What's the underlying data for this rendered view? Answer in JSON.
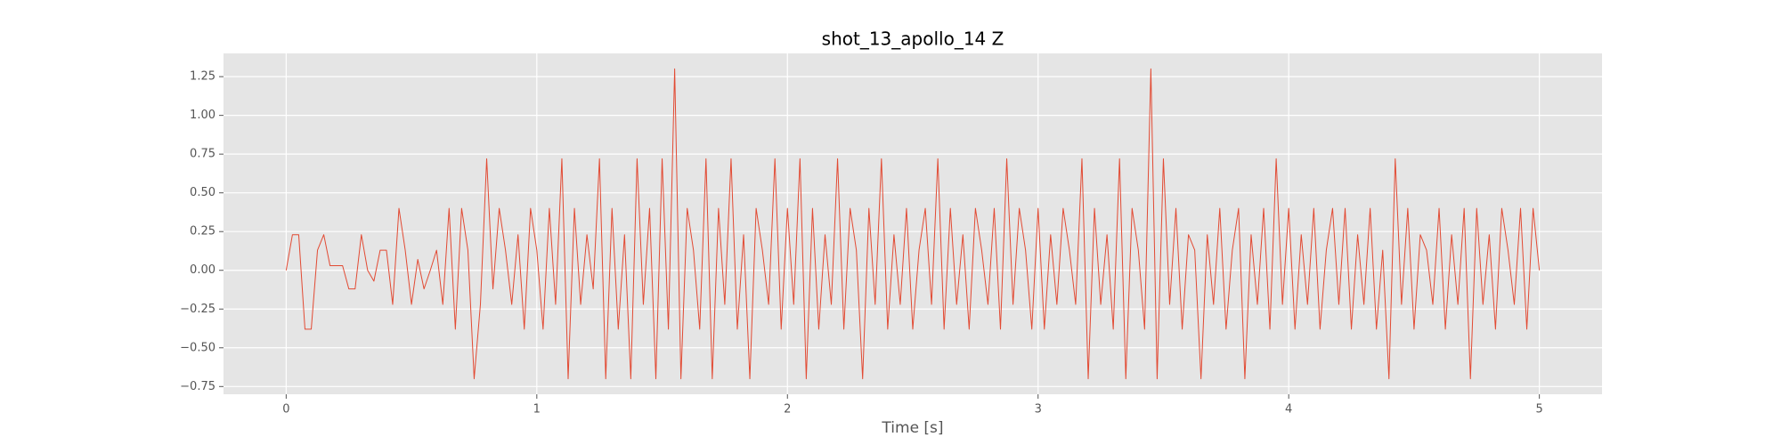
{
  "chart_data": {
    "type": "line",
    "title": "shot_13_apollo_14 Z",
    "x_label": "Time [s]",
    "color": "#e24a33",
    "grid": true,
    "xlim": [
      -0.25,
      5.25
    ],
    "ylim": [
      -0.8,
      1.4
    ],
    "xticks": [
      0,
      1,
      2,
      3,
      4,
      5
    ],
    "yticks": [
      {
        "value": -0.75,
        "label": "−0.75"
      },
      {
        "value": -0.5,
        "label": "−0.50"
      },
      {
        "value": -0.25,
        "label": "−0.25"
      },
      {
        "value": 0,
        "label": "0.00"
      },
      {
        "value": 0.25,
        "label": "0.25"
      },
      {
        "value": 0.5,
        "label": "0.50"
      },
      {
        "value": 0.75,
        "label": "0.75"
      },
      {
        "value": 1.0,
        "label": "1.00"
      },
      {
        "value": 1.25,
        "label": "1.25"
      }
    ],
    "x": [
      0,
      0.025,
      0.05,
      0.075,
      0.1,
      0.125,
      0.15,
      0.175,
      0.2,
      0.225,
      0.25,
      0.275,
      0.3,
      0.325,
      0.35,
      0.375,
      0.4,
      0.425,
      0.45,
      0.475,
      0.5,
      0.525,
      0.55,
      0.575,
      0.6,
      0.625,
      0.65,
      0.675,
      0.7,
      0.725,
      0.75,
      0.775,
      0.8,
      0.825,
      0.85,
      0.875,
      0.9,
      0.925,
      0.95,
      0.975,
      1,
      1.025,
      1.05,
      1.075,
      1.1,
      1.125,
      1.15,
      1.175,
      1.2,
      1.225,
      1.25,
      1.275,
      1.3,
      1.325,
      1.35,
      1.375,
      1.4,
      1.425,
      1.45,
      1.475,
      1.5,
      1.525,
      1.55,
      1.575,
      1.6,
      1.625,
      1.65,
      1.675,
      1.7,
      1.725,
      1.75,
      1.775,
      1.8,
      1.825,
      1.85,
      1.875,
      1.9,
      1.925,
      1.95,
      1.975,
      2,
      2.025,
      2.05,
      2.075,
      2.1,
      2.125,
      2.15,
      2.175,
      2.2,
      2.225,
      2.25,
      2.275,
      2.3,
      2.325,
      2.35,
      2.375,
      2.4,
      2.425,
      2.45,
      2.475,
      2.5,
      2.525,
      2.55,
      2.575,
      2.6,
      2.625,
      2.65,
      2.675,
      2.7,
      2.725,
      2.75,
      2.775,
      2.8,
      2.825,
      2.85,
      2.875,
      2.9,
      2.925,
      2.95,
      2.975,
      3,
      3.025,
      3.05,
      3.075,
      3.1,
      3.125,
      3.15,
      3.175,
      3.2,
      3.225,
      3.25,
      3.275,
      3.3,
      3.325,
      3.35,
      3.375,
      3.4,
      3.425,
      3.45,
      3.475,
      3.5,
      3.525,
      3.55,
      3.575,
      3.6,
      3.625,
      3.65,
      3.675,
      3.7,
      3.725,
      3.75,
      3.775,
      3.8,
      3.825,
      3.85,
      3.875,
      3.9,
      3.925,
      3.95,
      3.975,
      4,
      4.025,
      4.05,
      4.075,
      4.1,
      4.125,
      4.15,
      4.175,
      4.2,
      4.225,
      4.25,
      4.275,
      4.3,
      4.325,
      4.35,
      4.375,
      4.4,
      4.425,
      4.45,
      4.475,
      4.5,
      4.525,
      4.55,
      4.575,
      4.6,
      4.625,
      4.65,
      4.675,
      4.7,
      4.725,
      4.75,
      4.775,
      4.8,
      4.825,
      4.85,
      4.875,
      4.9,
      4.925,
      4.95,
      4.975,
      5
    ],
    "values": [
      0,
      0.23,
      0.23,
      -0.38,
      -0.38,
      0.13,
      0.23,
      0.03,
      0.03,
      0.03,
      -0.12,
      -0.12,
      0.23,
      0,
      -0.07,
      0.13,
      0.13,
      -0.22,
      0.4,
      0.13,
      -0.22,
      0.07,
      -0.12,
      0,
      0.13,
      -0.22,
      0.4,
      -0.38,
      0.4,
      0.13,
      -0.7,
      -0.22,
      0.72,
      -0.12,
      0.4,
      0.13,
      -0.22,
      0.23,
      -0.38,
      0.4,
      0.13,
      -0.38,
      0.4,
      -0.22,
      0.72,
      -0.7,
      0.4,
      -0.22,
      0.23,
      -0.12,
      0.72,
      -0.7,
      0.4,
      -0.38,
      0.23,
      -0.7,
      0.72,
      -0.22,
      0.4,
      -0.7,
      0.72,
      -0.38,
      1.3,
      -0.7,
      0.4,
      0.13,
      -0.38,
      0.72,
      -0.7,
      0.4,
      -0.22,
      0.72,
      -0.38,
      0.23,
      -0.7,
      0.4,
      0.13,
      -0.22,
      0.72,
      -0.38,
      0.4,
      -0.22,
      0.72,
      -0.7,
      0.4,
      -0.38,
      0.23,
      -0.22,
      0.72,
      -0.38,
      0.4,
      0.13,
      -0.7,
      0.4,
      -0.22,
      0.72,
      -0.38,
      0.23,
      -0.22,
      0.4,
      -0.38,
      0.13,
      0.4,
      -0.22,
      0.72,
      -0.38,
      0.4,
      -0.22,
      0.23,
      -0.38,
      0.4,
      0.13,
      -0.22,
      0.4,
      -0.38,
      0.72,
      -0.22,
      0.4,
      0.13,
      -0.38,
      0.4,
      -0.38,
      0.23,
      -0.22,
      0.4,
      0.13,
      -0.22,
      0.72,
      -0.7,
      0.4,
      -0.22,
      0.23,
      -0.38,
      0.72,
      -0.7,
      0.4,
      0.13,
      -0.38,
      1.3,
      -0.7,
      0.72,
      -0.22,
      0.4,
      -0.38,
      0.23,
      0.13,
      -0.7,
      0.23,
      -0.22,
      0.4,
      -0.38,
      0.13,
      0.4,
      -0.7,
      0.23,
      -0.22,
      0.4,
      -0.38,
      0.72,
      -0.22,
      0.4,
      -0.38,
      0.23,
      -0.22,
      0.4,
      -0.38,
      0.13,
      0.4,
      -0.22,
      0.4,
      -0.38,
      0.23,
      -0.22,
      0.4,
      -0.38,
      0.13,
      -0.7,
      0.72,
      -0.22,
      0.4,
      -0.38,
      0.23,
      0.13,
      -0.22,
      0.4,
      -0.38,
      0.23,
      -0.22,
      0.4,
      -0.7,
      0.4,
      -0.22,
      0.23,
      -0.38,
      0.4,
      0.13,
      -0.22,
      0.4,
      -0.38,
      0.4,
      0
    ]
  }
}
